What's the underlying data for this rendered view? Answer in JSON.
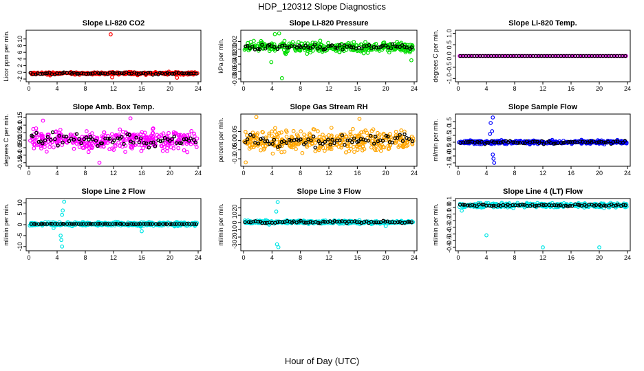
{
  "title": "HDP_120312  Slope Diagnostics",
  "xlabel": "Hour of Day (UTC)",
  "chart_data": [
    {
      "type": "scatter",
      "title": "Slope Li-820 CO2",
      "ylabel": "Licor ppm per min.",
      "color": "#ff0000",
      "xlim": [
        0,
        24
      ],
      "xticks": [
        0,
        4,
        8,
        12,
        16,
        20,
        24
      ],
      "ylim": [
        -2.2,
        12
      ],
      "yticks": [
        -2,
        0,
        2,
        4,
        6,
        8,
        10
      ],
      "center": -0.3,
      "spread": 0.35,
      "black_spread": 0.3,
      "outliers": [
        [
          11.6,
          11.4
        ],
        [
          11.8,
          -1.5
        ],
        [
          21.0,
          -1.6
        ],
        [
          3.0,
          -0.9
        ]
      ]
    },
    {
      "type": "scatter",
      "title": "Slope Li-820 Pressure",
      "ylabel": "kPa per min.",
      "color": "#00dd00",
      "xlim": [
        0,
        24
      ],
      "xticks": [
        0,
        4,
        8,
        12,
        16,
        20,
        24
      ],
      "ylim": [
        -0.082,
        0.045
      ],
      "yticks": [
        -0.08,
        -0.06,
        -0.04,
        -0.02,
        0.0,
        0.02
      ],
      "center": 0.005,
      "spread": 0.012,
      "black_spread": 0.008,
      "outliers": [
        [
          5.4,
          -0.078
        ],
        [
          4.4,
          0.04
        ],
        [
          5.0,
          0.042
        ],
        [
          3.9,
          -0.035
        ],
        [
          23.6,
          -0.03
        ]
      ]
    },
    {
      "type": "scatter",
      "title": "Slope Li-820 Temp.",
      "ylabel": "degrees C per min.",
      "color": "#ff00ff",
      "xlim": [
        0,
        24
      ],
      "xticks": [
        0,
        4,
        8,
        12,
        16,
        20,
        24
      ],
      "ylim": [
        -1.05,
        1.05
      ],
      "yticks": [
        -1.0,
        -0.5,
        0.0,
        0.5,
        1.0
      ],
      "center": 0.0,
      "spread": 0.0,
      "black_spread": 0.0,
      "outliers": []
    },
    {
      "type": "scatter",
      "title": "Slope Amb. Box Temp.",
      "ylabel": "degrees C per min.",
      "color": "#ff00ff",
      "xlim": [
        0,
        24
      ],
      "xticks": [
        0,
        4,
        8,
        12,
        16,
        20,
        24
      ],
      "ylim": [
        -0.16,
        0.16
      ],
      "yticks": [
        -0.15,
        -0.1,
        -0.05,
        0.0,
        0.05,
        0.1,
        0.15
      ],
      "center": 0.0,
      "spread": 0.06,
      "black_spread": 0.04,
      "outliers": [
        [
          14.4,
          0.145
        ],
        [
          10.0,
          -0.15
        ],
        [
          2.0,
          0.13
        ]
      ]
    },
    {
      "type": "scatter",
      "title": "Slope Gas Stream RH",
      "ylabel": "percent per min.",
      "color": "#ffa500",
      "xlim": [
        0,
        24
      ],
      "xticks": [
        0,
        4,
        8,
        12,
        16,
        20,
        24
      ],
      "ylim": [
        -0.13,
        0.135
      ],
      "yticks": [
        -0.1,
        -0.05,
        0.0,
        0.05
      ],
      "center": 0.0,
      "spread": 0.05,
      "black_spread": 0.03,
      "outliers": [
        [
          0.3,
          -0.12
        ],
        [
          1.8,
          0.13
        ],
        [
          16.3,
          0.12
        ]
      ]
    },
    {
      "type": "scatter",
      "title": "Slope Sample Flow",
      "ylabel": "ml/min per min.",
      "color": "#0000ff",
      "xlim": [
        0,
        24
      ],
      "xticks": [
        0,
        4,
        8,
        12,
        16,
        20,
        24
      ],
      "ylim": [
        -1.6,
        1.9
      ],
      "yticks": [
        -1.5,
        -1.0,
        -0.5,
        0.0,
        0.5,
        1.0,
        1.5
      ],
      "center": 0.0,
      "spread": 0.12,
      "black_spread": 0.1,
      "outliers": [
        [
          4.9,
          1.8
        ],
        [
          4.6,
          1.4
        ],
        [
          4.8,
          0.8
        ],
        [
          4.5,
          0.6
        ],
        [
          5.0,
          -1.2
        ],
        [
          5.1,
          -1.5
        ],
        [
          4.9,
          -0.9
        ]
      ]
    },
    {
      "type": "scatter",
      "title": "Slope Line 2 Flow",
      "ylabel": "ml/min per min.",
      "color": "#00e5e5",
      "xlim": [
        0,
        24
      ],
      "xticks": [
        0,
        4,
        8,
        12,
        16,
        20,
        24
      ],
      "ylim": [
        -11,
        11
      ],
      "yticks": [
        -10,
        -5,
        0,
        5,
        10
      ],
      "center": 0.3,
      "spread": 0.8,
      "black_spread": 0.1,
      "outliers": [
        [
          5.0,
          10.5
        ],
        [
          4.8,
          6.5
        ],
        [
          4.7,
          4.5
        ],
        [
          4.5,
          -5.0
        ],
        [
          4.6,
          -7.0
        ],
        [
          4.7,
          -10.0
        ],
        [
          16.0,
          -3.0
        ],
        [
          3.5,
          -1.5
        ]
      ]
    },
    {
      "type": "scatter",
      "title": "Slope Line 3 Flow",
      "ylabel": "ml/min per min.",
      "color": "#00e5e5",
      "xlim": [
        0,
        24
      ],
      "xticks": [
        0,
        4,
        8,
        12,
        16,
        20,
        24
      ],
      "ylim": [
        -36,
        30
      ],
      "yticks": [
        -30,
        -20,
        -10,
        0,
        10,
        20
      ],
      "center": 0.5,
      "spread": 2.0,
      "black_spread": 1.5,
      "outliers": [
        [
          4.8,
          28
        ],
        [
          4.6,
          15
        ],
        [
          4.7,
          -30
        ],
        [
          4.9,
          -34
        ],
        [
          3.6,
          -3
        ],
        [
          20.0,
          -5
        ]
      ]
    },
    {
      "type": "scatter",
      "title": "Slope Line 4 (LT) Flow",
      "ylabel": "ml/min per min.",
      "color": "#00e5e5",
      "xlim": [
        0,
        24
      ],
      "xticks": [
        0,
        4,
        8,
        12,
        16,
        20,
        24
      ],
      "ylim": [
        -0.62,
        0.1
      ],
      "yticks": [
        -0.6,
        -0.5,
        -0.4,
        -0.3,
        -0.2,
        -0.1,
        0.0,
        0.1
      ],
      "center": 0.03,
      "spread": 0.03,
      "black_spread": 0.015,
      "outliers": [
        [
          4.0,
          -0.42
        ],
        [
          12.0,
          -0.6
        ],
        [
          20.0,
          -0.6
        ],
        [
          0.5,
          -0.05
        ]
      ]
    }
  ]
}
